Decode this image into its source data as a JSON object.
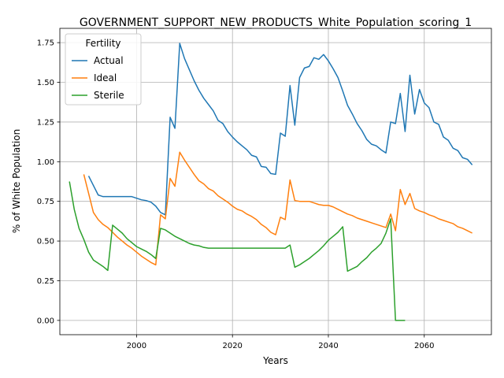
{
  "chart_data": {
    "type": "line",
    "title": "GOVERNMENT_SUPPORT_NEW_PRODUCTS_White_Population_scoring_1",
    "xlabel": "Years",
    "ylabel": "% of White Population",
    "xlim": [
      1984,
      2074
    ],
    "ylim": [
      -0.09,
      1.84
    ],
    "xticks": [
      2000,
      2020,
      2040,
      2060
    ],
    "yticks": [
      0.0,
      0.25,
      0.5,
      0.75,
      1.0,
      1.25,
      1.5,
      1.75
    ],
    "ytick_labels": [
      "0.00",
      "0.25",
      "0.50",
      "0.75",
      "1.00",
      "1.25",
      "1.50",
      "1.75"
    ],
    "grid": true,
    "legend": {
      "title": "Fertility",
      "placement": "top-left"
    },
    "series": [
      {
        "name": "Actual",
        "color": "#1f77b4",
        "points": [
          [
            1990,
            0.91
          ],
          [
            1991,
            0.85
          ],
          [
            1992,
            0.79
          ],
          [
            1993,
            0.78
          ],
          [
            1995,
            0.78
          ],
          [
            1997,
            0.78
          ],
          [
            1999,
            0.78
          ],
          [
            2000,
            0.77
          ],
          [
            2001,
            0.76
          ],
          [
            2002,
            0.755
          ],
          [
            2003,
            0.745
          ],
          [
            2004,
            0.72
          ],
          [
            2005,
            0.68
          ],
          [
            2006,
            0.665
          ],
          [
            2007,
            1.28
          ],
          [
            2008,
            1.21
          ],
          [
            2009,
            1.745
          ],
          [
            2010,
            1.65
          ],
          [
            2011,
            1.58
          ],
          [
            2012,
            1.51
          ],
          [
            2013,
            1.45
          ],
          [
            2014,
            1.4
          ],
          [
            2015,
            1.36
          ],
          [
            2016,
            1.32
          ],
          [
            2017,
            1.26
          ],
          [
            2018,
            1.24
          ],
          [
            2019,
            1.19
          ],
          [
            2020,
            1.155
          ],
          [
            2021,
            1.125
          ],
          [
            2022,
            1.1
          ],
          [
            2023,
            1.075
          ],
          [
            2024,
            1.04
          ],
          [
            2025,
            1.03
          ],
          [
            2026,
            0.97
          ],
          [
            2027,
            0.965
          ],
          [
            2028,
            0.925
          ],
          [
            2029,
            0.92
          ],
          [
            2030,
            1.18
          ],
          [
            2031,
            1.16
          ],
          [
            2032,
            1.48
          ],
          [
            2033,
            1.23
          ],
          [
            2034,
            1.53
          ],
          [
            2035,
            1.59
          ],
          [
            2036,
            1.6
          ],
          [
            2037,
            1.655
          ],
          [
            2038,
            1.645
          ],
          [
            2039,
            1.675
          ],
          [
            2040,
            1.635
          ],
          [
            2041,
            1.585
          ],
          [
            2042,
            1.53
          ],
          [
            2043,
            1.445
          ],
          [
            2044,
            1.355
          ],
          [
            2045,
            1.3
          ],
          [
            2046,
            1.24
          ],
          [
            2047,
            1.195
          ],
          [
            2048,
            1.14
          ],
          [
            2049,
            1.11
          ],
          [
            2050,
            1.1
          ],
          [
            2051,
            1.075
          ],
          [
            2052,
            1.055
          ],
          [
            2053,
            1.25
          ],
          [
            2054,
            1.24
          ],
          [
            2055,
            1.43
          ],
          [
            2056,
            1.19
          ],
          [
            2057,
            1.545
          ],
          [
            2058,
            1.3
          ],
          [
            2059,
            1.455
          ],
          [
            2060,
            1.37
          ],
          [
            2061,
            1.34
          ],
          [
            2062,
            1.25
          ],
          [
            2063,
            1.235
          ],
          [
            2064,
            1.155
          ],
          [
            2065,
            1.135
          ],
          [
            2066,
            1.085
          ],
          [
            2067,
            1.07
          ],
          [
            2068,
            1.025
          ],
          [
            2069,
            1.015
          ],
          [
            2070,
            0.98
          ]
        ]
      },
      {
        "name": "Ideal",
        "color": "#ff7f0e",
        "points": [
          [
            1989,
            0.92
          ],
          [
            1990,
            0.8
          ],
          [
            1991,
            0.68
          ],
          [
            1992,
            0.635
          ],
          [
            1993,
            0.605
          ],
          [
            1994,
            0.585
          ],
          [
            1995,
            0.555
          ],
          [
            1996,
            0.525
          ],
          [
            1997,
            0.5
          ],
          [
            1998,
            0.475
          ],
          [
            1999,
            0.455
          ],
          [
            2000,
            0.43
          ],
          [
            2001,
            0.405
          ],
          [
            2002,
            0.385
          ],
          [
            2003,
            0.365
          ],
          [
            2004,
            0.35
          ],
          [
            2005,
            0.665
          ],
          [
            2006,
            0.64
          ],
          [
            2007,
            0.895
          ],
          [
            2008,
            0.845
          ],
          [
            2009,
            1.06
          ],
          [
            2010,
            1.01
          ],
          [
            2011,
            0.965
          ],
          [
            2012,
            0.92
          ],
          [
            2013,
            0.88
          ],
          [
            2014,
            0.86
          ],
          [
            2015,
            0.83
          ],
          [
            2016,
            0.815
          ],
          [
            2017,
            0.785
          ],
          [
            2018,
            0.765
          ],
          [
            2019,
            0.745
          ],
          [
            2020,
            0.72
          ],
          [
            2021,
            0.7
          ],
          [
            2022,
            0.69
          ],
          [
            2023,
            0.67
          ],
          [
            2024,
            0.655
          ],
          [
            2025,
            0.635
          ],
          [
            2026,
            0.605
          ],
          [
            2027,
            0.585
          ],
          [
            2028,
            0.555
          ],
          [
            2029,
            0.54
          ],
          [
            2030,
            0.65
          ],
          [
            2031,
            0.635
          ],
          [
            2032,
            0.885
          ],
          [
            2033,
            0.755
          ],
          [
            2034,
            0.75
          ],
          [
            2035,
            0.75
          ],
          [
            2036,
            0.75
          ],
          [
            2037,
            0.74
          ],
          [
            2038,
            0.73
          ],
          [
            2039,
            0.725
          ],
          [
            2040,
            0.725
          ],
          [
            2041,
            0.715
          ],
          [
            2042,
            0.7
          ],
          [
            2043,
            0.685
          ],
          [
            2044,
            0.67
          ],
          [
            2045,
            0.66
          ],
          [
            2046,
            0.645
          ],
          [
            2047,
            0.635
          ],
          [
            2048,
            0.625
          ],
          [
            2049,
            0.615
          ],
          [
            2050,
            0.605
          ],
          [
            2051,
            0.595
          ],
          [
            2052,
            0.585
          ],
          [
            2053,
            0.67
          ],
          [
            2054,
            0.565
          ],
          [
            2055,
            0.825
          ],
          [
            2056,
            0.73
          ],
          [
            2057,
            0.8
          ],
          [
            2058,
            0.705
          ],
          [
            2059,
            0.69
          ],
          [
            2060,
            0.68
          ],
          [
            2061,
            0.665
          ],
          [
            2062,
            0.655
          ],
          [
            2063,
            0.64
          ],
          [
            2064,
            0.63
          ],
          [
            2065,
            0.62
          ],
          [
            2066,
            0.61
          ],
          [
            2067,
            0.59
          ],
          [
            2068,
            0.58
          ],
          [
            2069,
            0.565
          ],
          [
            2070,
            0.55
          ]
        ]
      },
      {
        "name": "Sterile",
        "color": "#2ca02c",
        "points": [
          [
            1986,
            0.875
          ],
          [
            1987,
            0.7
          ],
          [
            1988,
            0.58
          ],
          [
            1989,
            0.51
          ],
          [
            1990,
            0.43
          ],
          [
            1991,
            0.38
          ],
          [
            1992,
            0.36
          ],
          [
            1993,
            0.34
          ],
          [
            1994,
            0.315
          ],
          [
            1995,
            0.6
          ],
          [
            1996,
            0.575
          ],
          [
            1997,
            0.55
          ],
          [
            1998,
            0.515
          ],
          [
            1999,
            0.49
          ],
          [
            2000,
            0.465
          ],
          [
            2001,
            0.45
          ],
          [
            2002,
            0.435
          ],
          [
            2003,
            0.415
          ],
          [
            2004,
            0.39
          ],
          [
            2005,
            0.58
          ],
          [
            2006,
            0.57
          ],
          [
            2007,
            0.55
          ],
          [
            2008,
            0.53
          ],
          [
            2009,
            0.515
          ],
          [
            2010,
            0.5
          ],
          [
            2011,
            0.485
          ],
          [
            2012,
            0.475
          ],
          [
            2013,
            0.47
          ],
          [
            2014,
            0.46
          ],
          [
            2015,
            0.455
          ],
          [
            2016,
            0.455
          ],
          [
            2020,
            0.455
          ],
          [
            2025,
            0.455
          ],
          [
            2030,
            0.455
          ],
          [
            2031,
            0.455
          ],
          [
            2032,
            0.475
          ],
          [
            2033,
            0.335
          ],
          [
            2034,
            0.35
          ],
          [
            2035,
            0.37
          ],
          [
            2036,
            0.39
          ],
          [
            2037,
            0.415
          ],
          [
            2038,
            0.44
          ],
          [
            2039,
            0.47
          ],
          [
            2040,
            0.505
          ],
          [
            2041,
            0.53
          ],
          [
            2042,
            0.555
          ],
          [
            2043,
            0.59
          ],
          [
            2044,
            0.31
          ],
          [
            2045,
            0.325
          ],
          [
            2046,
            0.34
          ],
          [
            2047,
            0.37
          ],
          [
            2048,
            0.395
          ],
          [
            2049,
            0.43
          ],
          [
            2050,
            0.455
          ],
          [
            2051,
            0.485
          ],
          [
            2052,
            0.55
          ],
          [
            2053,
            0.64
          ],
          [
            2054,
            0.0
          ],
          [
            2055,
            0.0
          ],
          [
            2056,
            0.0
          ]
        ]
      }
    ]
  }
}
